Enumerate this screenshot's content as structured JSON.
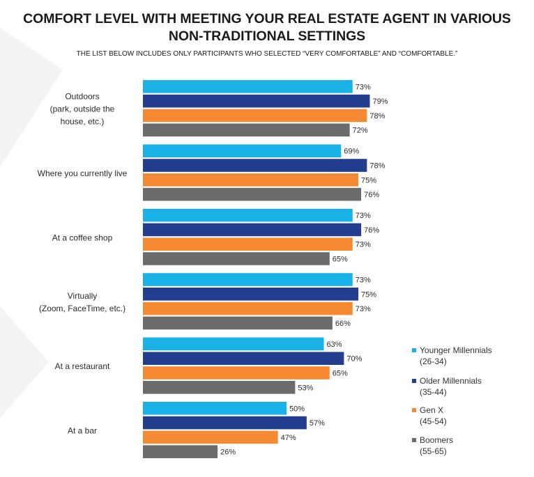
{
  "title_line_1": "COMFORT LEVEL WITH MEETING YOUR REAL ESTATE AGENT IN VARIOUS",
  "title_line_2": "NON-TRADITIONAL SETTINGS",
  "subtitle": "THE LIST BELOW INCLUDES ONLY PARTICIPANTS WHO SELECTED “VERY COMFORTABLE” AND “COMFORTABLE.”",
  "chart_data": {
    "type": "bar",
    "orientation": "horizontal",
    "categories": [
      "Outdoors\n(park, outside the\nhouse, etc.)",
      "Where you currently live",
      "At a coffee shop",
      "Virtually\n(Zoom, FaceTime, etc.)",
      "At a restaurant",
      "At a bar"
    ],
    "value_suffix": "%",
    "xlim": [
      0,
      100
    ],
    "series": [
      {
        "name": "Younger Millennials\n(26-34)",
        "color": "#1ab2e6",
        "values": [
          73,
          69,
          73,
          73,
          63,
          50
        ]
      },
      {
        "name": "Older Millennials\n(35-44)",
        "color": "#233d8f",
        "values": [
          79,
          78,
          76,
          75,
          70,
          57
        ]
      },
      {
        "name": "Gen X\n(45-54)",
        "color": "#f68a32",
        "values": [
          78,
          75,
          73,
          73,
          65,
          47
        ]
      },
      {
        "name": "Boomers\n(55-65)",
        "color": "#6b6b6b",
        "values": [
          72,
          76,
          65,
          66,
          53,
          26
        ]
      }
    ],
    "legend_position": "bottom-right",
    "grid": false
  }
}
